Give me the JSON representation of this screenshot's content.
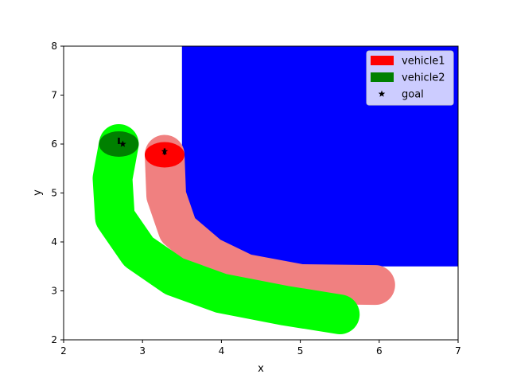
{
  "chart_data": {
    "type": "scatter",
    "title": "",
    "xlabel": "x",
    "ylabel": "y",
    "xlim": [
      2,
      7
    ],
    "ylim": [
      2,
      8
    ],
    "xticks": [
      "2",
      "3",
      "4",
      "5",
      "6",
      "7"
    ],
    "yticks": [
      "2",
      "3",
      "4",
      "5",
      "6",
      "7",
      "8"
    ],
    "grid": false,
    "legend_position": "top-right",
    "obstacle": {
      "name": "",
      "color": "#0000ff",
      "x_start": 3.5,
      "x_end": 7.0,
      "y_start": 3.5,
      "y_end": 8.0,
      "corner_radius_x": 1.1,
      "corner_radius_y": 1.3
    },
    "series": [
      {
        "name": "vehicle1",
        "color": "#ff0000",
        "trail_color": "#f08080",
        "path": [
          [
            5.95,
            3.12
          ],
          [
            5.0,
            3.14
          ],
          [
            4.3,
            3.35
          ],
          [
            3.85,
            3.7
          ],
          [
            3.45,
            4.25
          ],
          [
            3.3,
            4.95
          ],
          [
            3.28,
            5.78
          ]
        ],
        "position": [
          3.28,
          5.78
        ],
        "heading": [
          0,
          0.13
        ]
      },
      {
        "name": "vehicle2",
        "color": "#008000",
        "trail_color": "#00ff00",
        "path": [
          [
            5.5,
            2.52
          ],
          [
            4.8,
            2.7
          ],
          [
            4.0,
            2.95
          ],
          [
            3.4,
            3.3
          ],
          [
            2.95,
            3.8
          ],
          [
            2.65,
            4.5
          ],
          [
            2.62,
            5.3
          ],
          [
            2.7,
            6.0
          ]
        ],
        "position": [
          2.7,
          6.0
        ],
        "heading": [
          0,
          0.13
        ]
      },
      {
        "name": "goal",
        "marker": "star",
        "color": "#000000",
        "points": [
          [
            2.75,
            6.0
          ],
          [
            3.28,
            5.85
          ]
        ]
      }
    ],
    "legend": [
      {
        "label": "vehicle1",
        "color": "#ff0000",
        "kind": "patch"
      },
      {
        "label": "vehicle2",
        "color": "#008000",
        "kind": "patch"
      },
      {
        "label": "goal",
        "color": "#000000",
        "kind": "star"
      }
    ]
  }
}
